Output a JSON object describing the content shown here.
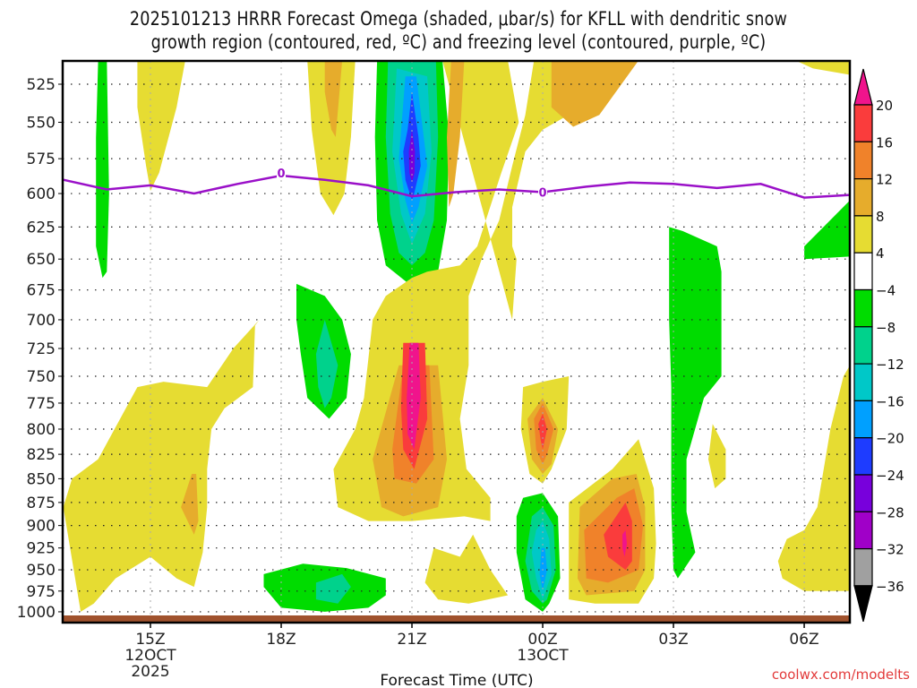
{
  "chart_data": {
    "type": "heatmap",
    "title_line1": "2025101213 HRRR Forecast Omega (shaded, μbar/s) for KFLL with dendritic snow",
    "title_line2": "growth region (contoured, red, ºC) and freezing level (contoured, purple, ºC)",
    "xlabel": "Forecast Time (UTC)",
    "ylabel": "",
    "credit": "coolwx.com/modelts",
    "x_unit": "hours after 15Z 12 Oct 2025",
    "xlim": [
      -2.0,
      16.05
    ],
    "ylim_hpa": [
      510,
      1013
    ],
    "y_scale": "log",
    "y_ticks": [
      525,
      550,
      575,
      600,
      625,
      650,
      675,
      700,
      725,
      750,
      775,
      800,
      825,
      850,
      875,
      900,
      925,
      950,
      975,
      1000
    ],
    "x_ticks": [
      {
        "hour": 0,
        "lines": [
          "15Z",
          "12OCT",
          "2025"
        ]
      },
      {
        "hour": 3,
        "lines": [
          "18Z"
        ]
      },
      {
        "hour": 6,
        "lines": [
          "21Z"
        ]
      },
      {
        "hour": 9,
        "lines": [
          "00Z",
          "13OCT"
        ]
      },
      {
        "hour": 12,
        "lines": [
          "03Z"
        ]
      },
      {
        "hour": 15,
        "lines": [
          "06Z"
        ]
      }
    ],
    "grid": true,
    "colorbar": {
      "position": "right",
      "levels": [
        20,
        16,
        12,
        8,
        4,
        -4,
        -8,
        -12,
        -16,
        -20,
        -24,
        -28,
        -32,
        -36
      ],
      "colors": [
        "#f0148c",
        "#fa3c3c",
        "#f0822a",
        "#e6ac2c",
        "#e6dc32",
        "#ffffff",
        "#00dc00",
        "#00d28c",
        "#00c8c8",
        "#00a0ff",
        "#1e3cff",
        "#7800dc",
        "#a000c8",
        "#a0a0a0",
        "#000000"
      ],
      "top_arrow_color": "#f0148c",
      "bottom_arrow_color": "#000000"
    },
    "ground_color": "#a0522d",
    "freezing_level": {
      "color": "#9a10c8",
      "label": "0",
      "label_points": [
        [
          3.0,
          585
        ],
        [
          9.0,
          599
        ]
      ],
      "points": [
        [
          -2.0,
          590
        ],
        [
          -1.0,
          597
        ],
        [
          0.0,
          594
        ],
        [
          1.0,
          600
        ],
        [
          2.0,
          593
        ],
        [
          3.0,
          587
        ],
        [
          4.0,
          590
        ],
        [
          5.0,
          594
        ],
        [
          6.0,
          602
        ],
        [
          7.0,
          599
        ],
        [
          8.0,
          597
        ],
        [
          9.0,
          599
        ],
        [
          10.0,
          595
        ],
        [
          11.0,
          592
        ],
        [
          12.0,
          593
        ],
        [
          13.0,
          596
        ],
        [
          14.0,
          593
        ],
        [
          15.0,
          603
        ],
        [
          16.05,
          601
        ]
      ]
    },
    "shaded_regions": [
      {
        "level": "-4",
        "color": "#00dc00",
        "pts": [
          [
            -1.2,
            510
          ],
          [
            -1.0,
            510
          ],
          [
            -0.95,
            600
          ],
          [
            -1.0,
            660
          ],
          [
            -1.1,
            665
          ],
          [
            -1.25,
            640
          ],
          [
            -1.25,
            560
          ]
        ]
      },
      {
        "level": "4",
        "color": "#e6dc32",
        "pts": [
          [
            -0.3,
            510
          ],
          [
            0.8,
            510
          ],
          [
            0.6,
            540
          ],
          [
            0.2,
            585
          ],
          [
            0.0,
            598
          ],
          [
            -0.1,
            580
          ],
          [
            -0.3,
            540
          ]
        ]
      },
      {
        "level": "4",
        "color": "#e6dc32",
        "pts": [
          [
            3.6,
            510
          ],
          [
            4.7,
            510
          ],
          [
            4.6,
            560
          ],
          [
            4.45,
            600
          ],
          [
            4.2,
            616
          ],
          [
            3.9,
            600
          ],
          [
            3.7,
            555
          ]
        ]
      },
      {
        "level": "8",
        "color": "#e6ac2c",
        "pts": [
          [
            4.0,
            510
          ],
          [
            4.4,
            510
          ],
          [
            4.25,
            560
          ],
          [
            4.15,
            555
          ],
          [
            4.0,
            530
          ]
        ]
      },
      {
        "level": "-4",
        "color": "#00dc00",
        "pts": [
          [
            5.2,
            510
          ],
          [
            6.7,
            510
          ],
          [
            6.85,
            560
          ],
          [
            6.8,
            620
          ],
          [
            6.6,
            660
          ],
          [
            6.0,
            672
          ],
          [
            5.4,
            655
          ],
          [
            5.2,
            620
          ],
          [
            5.15,
            560
          ]
        ]
      },
      {
        "level": "-8",
        "color": "#00d28c",
        "pts": [
          [
            5.45,
            510
          ],
          [
            6.55,
            510
          ],
          [
            6.6,
            560
          ],
          [
            6.5,
            620
          ],
          [
            6.3,
            645
          ],
          [
            6.0,
            655
          ],
          [
            5.7,
            645
          ],
          [
            5.5,
            615
          ],
          [
            5.4,
            560
          ]
        ]
      },
      {
        "level": "-12",
        "color": "#00c8c8",
        "pts": [
          [
            5.65,
            515
          ],
          [
            6.35,
            520
          ],
          [
            6.45,
            570
          ],
          [
            6.3,
            615
          ],
          [
            6.0,
            638
          ],
          [
            5.75,
            615
          ],
          [
            5.55,
            570
          ]
        ]
      },
      {
        "level": "-16",
        "color": "#00a0ff",
        "pts": [
          [
            5.85,
            520
          ],
          [
            6.1,
            520
          ],
          [
            6.25,
            555
          ],
          [
            6.35,
            580
          ],
          [
            6.15,
            610
          ],
          [
            6.0,
            622
          ],
          [
            5.85,
            605
          ],
          [
            5.7,
            575
          ]
        ]
      },
      {
        "level": "-20",
        "color": "#1e3cff",
        "pts": [
          [
            6.0,
            530
          ],
          [
            6.15,
            560
          ],
          [
            6.2,
            580
          ],
          [
            6.05,
            600
          ],
          [
            6.0,
            605
          ],
          [
            5.85,
            590
          ],
          [
            5.8,
            570
          ],
          [
            5.9,
            555
          ]
        ]
      },
      {
        "level": "-24",
        "color": "#7800dc",
        "pts": [
          [
            6.0,
            555
          ],
          [
            6.07,
            570
          ],
          [
            6.06,
            585
          ],
          [
            6.0,
            592
          ],
          [
            5.94,
            585
          ],
          [
            5.93,
            570
          ]
        ]
      },
      {
        "level": "4",
        "color": "#e6dc32",
        "pts": [
          [
            6.7,
            510
          ],
          [
            8.2,
            510
          ],
          [
            8.45,
            550
          ],
          [
            8.05,
            585
          ],
          [
            7.5,
            640
          ],
          [
            7.1,
            655
          ],
          [
            6.35,
            660
          ],
          [
            6.0,
            665
          ],
          [
            5.4,
            680
          ],
          [
            5.1,
            700
          ],
          [
            4.9,
            770
          ],
          [
            4.7,
            800
          ],
          [
            4.2,
            840
          ],
          [
            4.3,
            880
          ],
          [
            5.0,
            895
          ],
          [
            6.0,
            895
          ],
          [
            7.2,
            890
          ],
          [
            7.8,
            895
          ],
          [
            7.8,
            870
          ],
          [
            7.25,
            840
          ],
          [
            7.1,
            790
          ],
          [
            7.3,
            740
          ],
          [
            7.3,
            680
          ],
          [
            7.6,
            650
          ],
          [
            8.0,
            620
          ],
          [
            8.3,
            580
          ],
          [
            8.6,
            545
          ],
          [
            8.8,
            510
          ],
          [
            9.5,
            510
          ],
          [
            9.9,
            540
          ],
          [
            9.0,
            555
          ],
          [
            8.6,
            570
          ],
          [
            8.3,
            610
          ],
          [
            8.3,
            640
          ],
          [
            8.4,
            650
          ],
          [
            8.3,
            700
          ]
        ],
        "note": "approximate composite shape"
      },
      {
        "level": "8",
        "color": "#e6ac2c",
        "pts": [
          [
            6.9,
            510
          ],
          [
            7.2,
            510
          ],
          [
            7.1,
            560
          ],
          [
            6.95,
            600
          ],
          [
            6.85,
            610
          ],
          [
            6.8,
            560
          ]
        ]
      },
      {
        "level": "8",
        "color": "#e6ac2c",
        "pts": [
          [
            9.2,
            510
          ],
          [
            11.2,
            510
          ],
          [
            10.3,
            545
          ],
          [
            9.7,
            553
          ],
          [
            9.2,
            540
          ]
        ]
      },
      {
        "level": "-4",
        "color": "#00dc00",
        "pts": [
          [
            3.35,
            670
          ],
          [
            4.0,
            680
          ],
          [
            4.4,
            700
          ],
          [
            4.6,
            730
          ],
          [
            4.5,
            770
          ],
          [
            4.1,
            790
          ],
          [
            3.6,
            770
          ],
          [
            3.45,
            730
          ],
          [
            3.35,
            700
          ]
        ]
      },
      {
        "level": "-8",
        "color": "#00d28c",
        "pts": [
          [
            4.0,
            700
          ],
          [
            4.3,
            740
          ],
          [
            4.15,
            770
          ],
          [
            4.0,
            780
          ],
          [
            3.85,
            760
          ],
          [
            3.8,
            730
          ]
        ]
      }
    ]
  }
}
